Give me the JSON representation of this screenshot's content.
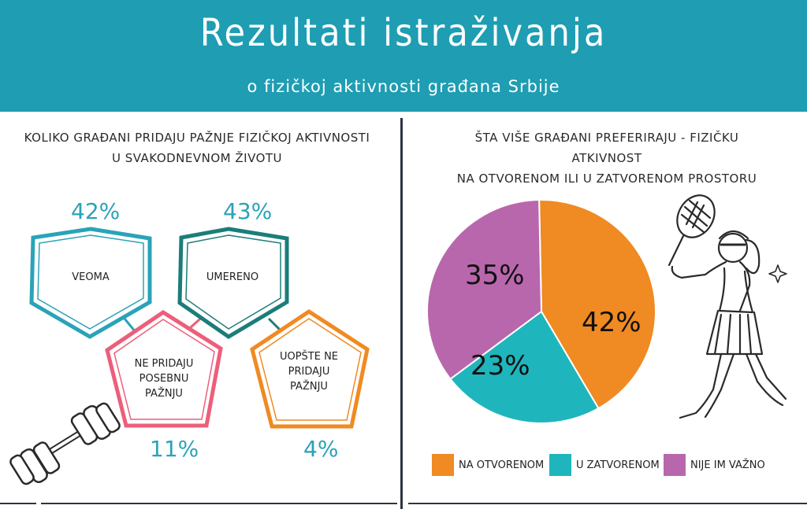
{
  "header": {
    "title": "Rezultati istraživanja",
    "subtitle": "o fizičkoj aktivnosti građana Srbije"
  },
  "left_panel": {
    "question": "Koliko građani pridaju pažnje fizičkoj aktivnosti u svakodnevnom životu",
    "items": [
      {
        "label": "VEOMA",
        "percent": "42%",
        "value": 42,
        "color": "#2aa3b8"
      },
      {
        "label": "UMERENO",
        "percent": "43%",
        "value": 43,
        "color": "#1b7d7a"
      },
      {
        "label": "NE PRIDAJU POSEBNU PAŽNJU",
        "percent": "11%",
        "value": 11,
        "color": "#ec5f7a"
      },
      {
        "label": "UOPŠTE NE PRIDAJU PAŽNJU",
        "percent": "4%",
        "value": 4,
        "color": "#f08a22"
      }
    ],
    "icon": "dumbbell-icon"
  },
  "right_panel": {
    "question_line1": "Šta više građani preferiraju - fizičku atkivnost",
    "question_line2": "na otvorenom ili u zatvorenom prostoru",
    "icon": "tennis-player-icon"
  },
  "chart_data": {
    "type": "pie",
    "title": "Šta više građani preferiraju - fizičku atkivnost na otvorenom ili u zatvorenom prostoru",
    "labels": [
      "NA OTVORENOM",
      "U ZATVORENOM",
      "NIJE IM VAŽNO"
    ],
    "values": [
      42,
      23,
      35
    ],
    "display_labels": [
      "42%",
      "23%",
      "35%"
    ],
    "colors": [
      "#f08a22",
      "#1fb5bd",
      "#b967ad"
    ],
    "legend_position": "bottom"
  }
}
